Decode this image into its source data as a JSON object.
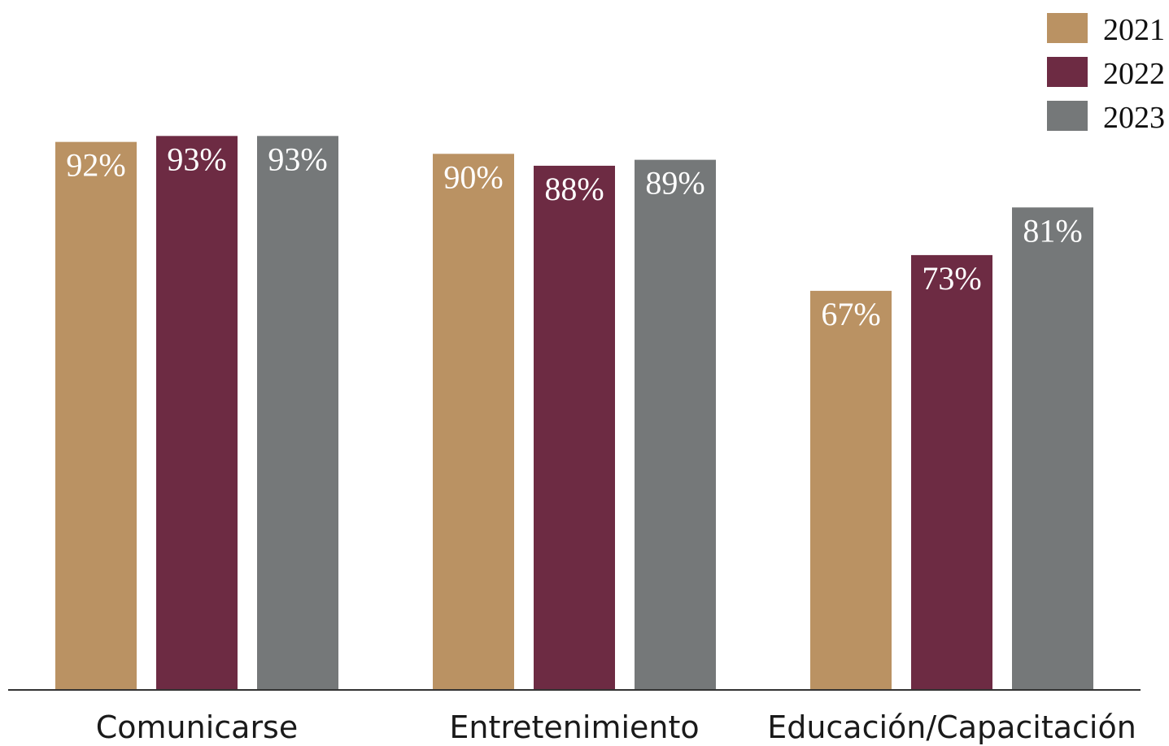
{
  "chart_data": {
    "type": "bar",
    "categories": [
      "Comunicarse",
      "Entretenimiento",
      "Educación/Capacitación"
    ],
    "series": [
      {
        "name": "2021",
        "color": "#BA9263",
        "values": [
          92,
          90,
          67
        ],
        "labels": [
          "92%",
          "90%",
          "67%"
        ]
      },
      {
        "name": "2022",
        "color": "#6D2B43",
        "values": [
          93,
          88,
          73
        ],
        "labels": [
          "93%",
          "88%",
          "73%"
        ]
      },
      {
        "name": "2023",
        "color": "#757879",
        "values": [
          93,
          89,
          81
        ],
        "labels": [
          "93%",
          "89%",
          "81%"
        ]
      }
    ],
    "ylim": [
      0,
      100
    ],
    "grid": false,
    "legend_position": "top-right",
    "title": "",
    "xlabel": "",
    "ylabel": ""
  }
}
